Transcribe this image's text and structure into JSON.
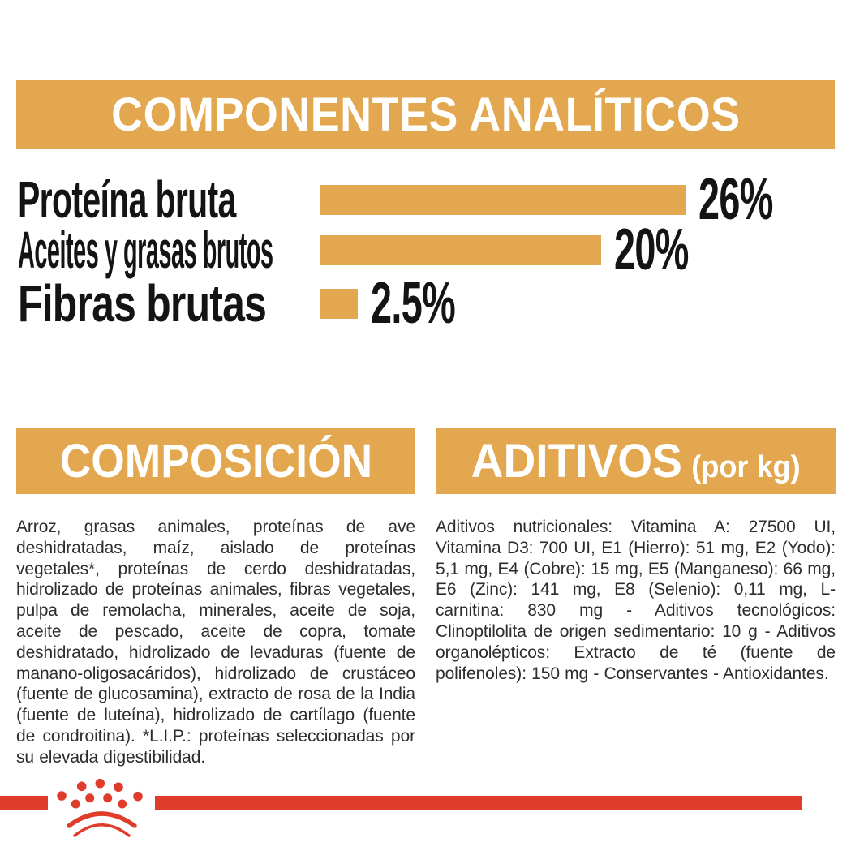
{
  "colors": {
    "gold": "#E3A84F",
    "red": "#E03C2B",
    "header_text": "#FFFFFF",
    "label_text": "#141414",
    "body_text": "#2D2D2D",
    "background": "#FFFFFF"
  },
  "analytical": {
    "title": "COMPONENTES ANALÍTICOS",
    "rows": [
      {
        "label": "Proteína bruta",
        "value": "26%"
      },
      {
        "label": "Aceites y grasas brutos",
        "value": "20%"
      },
      {
        "label": "Fibras brutas",
        "value": "2.5%"
      }
    ]
  },
  "chart_data": {
    "type": "bar",
    "orientation": "horizontal",
    "title": "COMPONENTES ANALÍTICOS",
    "categories": [
      "Proteína bruta",
      "Aceites y grasas brutos",
      "Fibras brutas"
    ],
    "values": [
      26,
      20,
      2.5
    ],
    "value_labels": [
      "26%",
      "20%",
      "2.5%"
    ],
    "unit": "%",
    "xlim": [
      0,
      26
    ],
    "bar_color": "#E3A84F",
    "grid": false,
    "legend": false
  },
  "composition": {
    "title": "COMPOSICIÓN",
    "body": "Arroz, grasas animales, proteínas de ave deshidratadas, maíz, aislado de proteínas vegetales*, proteínas de cerdo deshidratadas, hidrolizado de proteínas animales, fibras vegetales, pulpa de remolacha, minerales, aceite de soja, aceite de pescado, aceite de copra, tomate deshidratado, hidrolizado de levaduras (fuente de manano-oligosacáridos), hidrolizado de crustáceo (fuente de glucosamina), extracto de rosa de la India (fuente de luteína), hidrolizado de cartílago (fuente de condroitina). *L.I.P.: proteínas seleccionadas por su elevada digestibilidad."
  },
  "additives": {
    "title": "ADITIVOS",
    "title_suffix": "(por kg)",
    "body": "Aditivos nutricionales: Vitamina A: 27500 UI, Vitamina D3: 700 UI, E1 (Hierro): 51 mg, E2 (Yodo): 5,1 mg, E4 (Cobre): 15 mg, E5 (Manganeso): 66 mg, E6 (Zinc): 141 mg, E8 (Selenio): 0,11 mg, L-carnitina: 830 mg - Aditivos tecnológicos: Clinoptilolita de origen sedimentario: 10 g - Aditivos organolépticos: Extracto de té (fuente de polifenoles): 150 mg - Conservantes - Antioxidantes."
  },
  "footer": {
    "logo": "royal-canin-crown"
  }
}
